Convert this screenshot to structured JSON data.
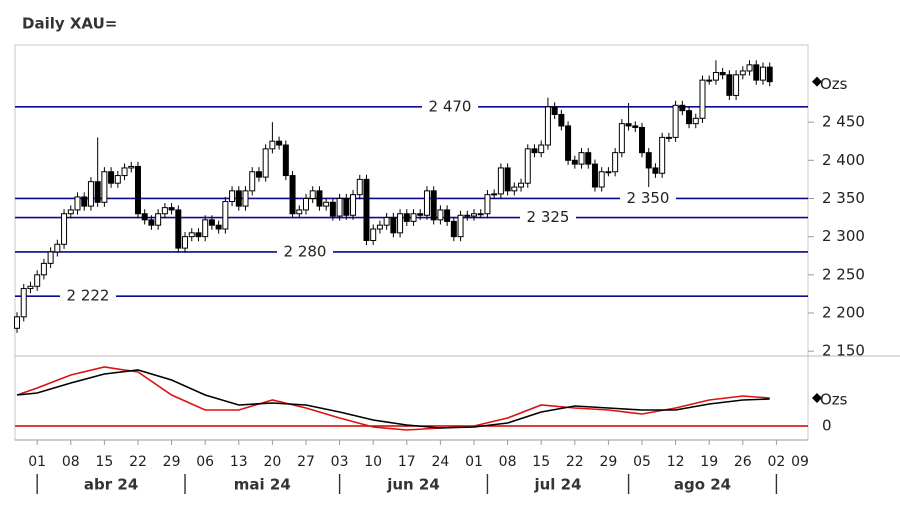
{
  "chart_data": {
    "type": "candlestick",
    "title": "Daily XAU=",
    "unit_label": "Ozs",
    "x": [
      -3,
      -2,
      -1,
      0,
      1,
      2,
      3,
      4,
      5,
      6,
      7,
      8,
      9,
      10,
      11,
      12,
      13,
      14,
      15,
      16,
      17,
      18,
      19,
      20,
      21,
      22,
      23,
      24,
      25,
      26,
      27,
      28,
      29,
      30,
      31,
      32,
      33,
      34,
      35,
      36,
      37,
      38,
      39,
      40,
      41,
      42,
      43,
      44,
      45,
      46,
      47,
      48,
      49,
      50,
      51,
      52,
      53,
      54,
      55,
      56,
      57,
      58,
      59,
      60,
      61,
      62,
      63,
      64,
      65,
      66,
      67,
      68,
      69,
      70,
      71,
      72,
      73,
      74,
      75,
      76,
      77,
      78,
      79,
      80,
      81,
      82,
      83,
      84,
      85,
      86,
      87,
      88,
      89,
      90,
      91,
      92,
      93,
      94,
      95,
      96,
      97,
      98,
      99,
      100,
      101,
      102,
      103,
      104,
      105,
      106,
      107,
      108,
      109
    ],
    "open": [
      2180,
      2195,
      2232,
      2235,
      2250,
      2265,
      2280,
      2290,
      2330,
      2335,
      2352,
      2340,
      2372,
      2345,
      2385,
      2370,
      2380,
      2390,
      2392,
      2330,
      2322,
      2315,
      2330,
      2338,
      2335,
      2285,
      2300,
      2305,
      2300,
      2322,
      2315,
      2310,
      2346,
      2360,
      2340,
      2360,
      2385,
      2378,
      2415,
      2425,
      2420,
      2380,
      2330,
      2335,
      2350,
      2360,
      2340,
      2345,
      2327,
      2350,
      2328,
      2355,
      2375,
      2295,
      2310,
      2315,
      2325,
      2305,
      2330,
      2320,
      2330,
      2328,
      2360,
      2322,
      2335,
      2320,
      2300,
      2328,
      2327,
      2330,
      2330,
      2355,
      2356,
      2390,
      2360,
      2365,
      2370,
      2415,
      2410,
      2420,
      2470,
      2460,
      2445,
      2400,
      2395,
      2410,
      2395,
      2365,
      2385,
      2385,
      2410,
      2448,
      2445,
      2443,
      2410,
      2390,
      2383,
      2430,
      2430,
      2472,
      2465,
      2448,
      2455,
      2505,
      2505,
      2515,
      2512,
      2485,
      2512,
      2517,
      2525,
      2505,
      2522
    ],
    "high": [
      2201,
      2238,
      2241,
      2256,
      2271,
      2286,
      2296,
      2336,
      2341,
      2358,
      2358,
      2378,
      2430,
      2391,
      2391,
      2386,
      2396,
      2398,
      2398,
      2336,
      2328,
      2336,
      2344,
      2344,
      2341,
      2306,
      2311,
      2311,
      2328,
      2328,
      2321,
      2352,
      2366,
      2366,
      2366,
      2391,
      2391,
      2421,
      2450,
      2431,
      2426,
      2386,
      2341,
      2356,
      2366,
      2366,
      2351,
      2351,
      2356,
      2356,
      2361,
      2381,
      2381,
      2316,
      2321,
      2331,
      2331,
      2336,
      2336,
      2336,
      2336,
      2366,
      2366,
      2341,
      2341,
      2326,
      2334,
      2334,
      2336,
      2336,
      2361,
      2362,
      2396,
      2396,
      2371,
      2376,
      2421,
      2421,
      2426,
      2482,
      2476,
      2466,
      2451,
      2406,
      2416,
      2416,
      2401,
      2391,
      2391,
      2416,
      2454,
      2475,
      2451,
      2449,
      2416,
      2396,
      2436,
      2436,
      2478,
      2478,
      2471,
      2461,
      2511,
      2511,
      2531,
      2521,
      2518,
      2518,
      2523,
      2531,
      2531,
      2528,
      2528
    ],
    "low": [
      2174,
      2189,
      2226,
      2229,
      2244,
      2259,
      2274,
      2284,
      2324,
      2329,
      2334,
      2334,
      2339,
      2339,
      2364,
      2364,
      2374,
      2384,
      2324,
      2316,
      2309,
      2309,
      2324,
      2329,
      2279,
      2279,
      2294,
      2294,
      2294,
      2309,
      2304,
      2304,
      2340,
      2334,
      2334,
      2354,
      2372,
      2372,
      2409,
      2414,
      2374,
      2324,
      2324,
      2329,
      2344,
      2334,
      2334,
      2321,
      2321,
      2322,
      2322,
      2349,
      2289,
      2289,
      2304,
      2309,
      2299,
      2299,
      2314,
      2314,
      2322,
      2322,
      2316,
      2316,
      2314,
      2294,
      2294,
      2321,
      2321,
      2324,
      2324,
      2349,
      2350,
      2354,
      2354,
      2359,
      2364,
      2404,
      2404,
      2414,
      2454,
      2439,
      2394,
      2389,
      2389,
      2389,
      2359,
      2359,
      2379,
      2379,
      2404,
      2439,
      2437,
      2404,
      2365,
      2377,
      2377,
      2424,
      2424,
      2459,
      2442,
      2442,
      2449,
      2499,
      2499,
      2506,
      2479,
      2479,
      2506,
      2511,
      2499,
      2499,
      2497
    ],
    "close": [
      2195,
      2232,
      2235,
      2250,
      2265,
      2280,
      2290,
      2330,
      2335,
      2352,
      2340,
      2372,
      2345,
      2385,
      2370,
      2380,
      2390,
      2392,
      2330,
      2322,
      2315,
      2330,
      2338,
      2335,
      2285,
      2300,
      2305,
      2300,
      2322,
      2315,
      2310,
      2346,
      2360,
      2340,
      2360,
      2385,
      2378,
      2415,
      2425,
      2420,
      2380,
      2330,
      2335,
      2350,
      2360,
      2340,
      2345,
      2327,
      2350,
      2328,
      2355,
      2375,
      2295,
      2310,
      2315,
      2325,
      2305,
      2330,
      2320,
      2330,
      2328,
      2360,
      2322,
      2335,
      2320,
      2300,
      2328,
      2327,
      2330,
      2330,
      2355,
      2356,
      2390,
      2360,
      2365,
      2370,
      2415,
      2410,
      2420,
      2470,
      2460,
      2445,
      2400,
      2395,
      2410,
      2395,
      2365,
      2385,
      2385,
      2410,
      2448,
      2445,
      2443,
      2410,
      2390,
      2383,
      2430,
      2430,
      2472,
      2465,
      2448,
      2455,
      2505,
      2505,
      2515,
      2512,
      2485,
      2512,
      2517,
      2525,
      2505,
      2522,
      2503
    ],
    "xlim": [
      -3.3,
      114.7
    ],
    "xticks": [
      {
        "value": 0,
        "label": "01"
      },
      {
        "value": 5,
        "label": "08"
      },
      {
        "value": 10,
        "label": "15"
      },
      {
        "value": 15,
        "label": "22"
      },
      {
        "value": 20,
        "label": "29"
      },
      {
        "value": 25,
        "label": "06"
      },
      {
        "value": 30,
        "label": "13"
      },
      {
        "value": 35,
        "label": "20"
      },
      {
        "value": 40,
        "label": "27"
      },
      {
        "value": 45,
        "label": "03"
      },
      {
        "value": 50,
        "label": "10"
      },
      {
        "value": 55,
        "label": "17"
      },
      {
        "value": 60,
        "label": "24"
      },
      {
        "value": 65,
        "label": "01"
      },
      {
        "value": 70,
        "label": "08"
      },
      {
        "value": 75,
        "label": "15"
      },
      {
        "value": 80,
        "label": "22"
      },
      {
        "value": 85,
        "label": "29"
      },
      {
        "value": 90,
        "label": "05"
      },
      {
        "value": 95,
        "label": "12"
      },
      {
        "value": 100,
        "label": "19"
      },
      {
        "value": 105,
        "label": "26"
      },
      {
        "value": 110,
        "label": "02"
      },
      {
        "value": 115,
        "label": "09"
      }
    ],
    "months": [
      {
        "value": 0,
        "label": "abr 24"
      },
      {
        "value": 22,
        "label": "mai 24"
      },
      {
        "value": 45,
        "label": "jun 24"
      },
      {
        "value": 67,
        "label": "jul 24"
      },
      {
        "value": 88,
        "label": "ago 24"
      },
      {
        "value": 110
      }
    ],
    "ylim": [
      2145,
      2551
    ],
    "yticks": [
      {
        "value": 2150,
        "label": "2 150"
      },
      {
        "value": 2200,
        "label": "2 200"
      },
      {
        "value": 2250,
        "label": "2 250"
      },
      {
        "value": 2300,
        "label": "2 300"
      },
      {
        "value": 2350,
        "label": "2 350"
      },
      {
        "value": 2400,
        "label": "2 400"
      },
      {
        "value": 2450,
        "label": "2 450"
      }
    ],
    "hlines": [
      {
        "value": 2470,
        "label": "2 470"
      },
      {
        "value": 2350,
        "label": "2 350"
      },
      {
        "value": 2325,
        "label": "2 325"
      },
      {
        "value": 2280,
        "label": "2 280"
      },
      {
        "value": 2222,
        "label": "2 222"
      }
    ],
    "hline_color": "#0a0a96",
    "oscillator": {
      "x": [
        -3,
        0,
        5,
        10,
        15,
        20,
        25,
        30,
        35,
        40,
        45,
        50,
        55,
        60,
        65,
        70,
        75,
        80,
        85,
        90,
        95,
        100,
        105,
        109
      ],
      "ylim": [
        -14,
        68
      ],
      "yticks": [
        0
      ],
      "zero_color": "#cc0000",
      "series": [
        {
          "color": "#dd1111",
          "values": [
            31,
            38,
            51,
            59,
            54,
            31,
            16,
            16,
            26,
            18,
            8,
            -1,
            -4,
            -2,
            0,
            8,
            21,
            18,
            16,
            12,
            18,
            26,
            30,
            28
          ]
        },
        {
          "color": "#000000",
          "values": [
            31,
            33,
            43,
            52,
            56,
            46,
            31,
            21,
            23,
            21,
            14,
            6,
            1,
            -2,
            -1,
            3,
            14,
            20,
            18,
            16,
            16,
            22,
            26,
            27
          ]
        }
      ]
    }
  }
}
